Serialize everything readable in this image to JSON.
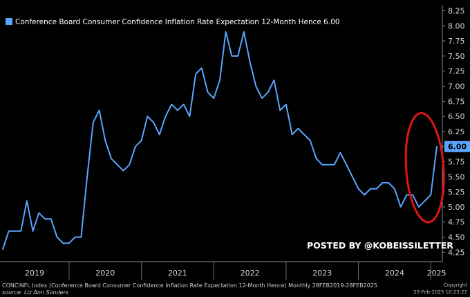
{
  "chart_data": {
    "type": "line",
    "legend": {
      "label": "Conference Board Consumer Confidence Inflation Rate Expectation 12-Month Hence",
      "last_value": "6.00",
      "color": "#5aa6ff",
      "placement": "top-left"
    },
    "ylim": [
      4.25,
      8.25
    ],
    "y_ticks": [
      "8.25",
      "8.00",
      "7.75",
      "7.50",
      "7.25",
      "7.00",
      "6.75",
      "6.50",
      "6.25",
      "6.00",
      "5.75",
      "5.50",
      "5.25",
      "5.00",
      "4.75",
      "4.50",
      "4.25"
    ],
    "x_ticks": [
      "2019",
      "2020",
      "2021",
      "2022",
      "2023",
      "2024",
      "2025"
    ],
    "xlim": [
      "2019-02",
      "2025-02"
    ],
    "x": [
      "2019-02",
      "2019-03",
      "2019-04",
      "2019-05",
      "2019-06",
      "2019-07",
      "2019-08",
      "2019-09",
      "2019-10",
      "2019-11",
      "2019-12",
      "2020-01",
      "2020-02",
      "2020-03",
      "2020-04",
      "2020-05",
      "2020-06",
      "2020-07",
      "2020-08",
      "2020-09",
      "2020-10",
      "2020-11",
      "2020-12",
      "2021-01",
      "2021-02",
      "2021-03",
      "2021-04",
      "2021-05",
      "2021-06",
      "2021-07",
      "2021-08",
      "2021-09",
      "2021-10",
      "2021-11",
      "2021-12",
      "2022-01",
      "2022-02",
      "2022-03",
      "2022-04",
      "2022-05",
      "2022-06",
      "2022-07",
      "2022-08",
      "2022-09",
      "2022-10",
      "2022-11",
      "2022-12",
      "2023-01",
      "2023-02",
      "2023-03",
      "2023-04",
      "2023-05",
      "2023-06",
      "2023-07",
      "2023-08",
      "2023-09",
      "2023-10",
      "2023-11",
      "2023-12",
      "2024-01",
      "2024-02",
      "2024-03",
      "2024-04",
      "2024-05",
      "2024-06",
      "2024-07",
      "2024-08",
      "2024-09",
      "2024-10",
      "2024-11",
      "2024-12",
      "2025-01",
      "2025-02"
    ],
    "y": [
      4.3,
      4.6,
      4.6,
      4.6,
      5.1,
      4.6,
      4.9,
      4.8,
      4.8,
      4.5,
      4.4,
      4.4,
      4.5,
      4.5,
      5.5,
      6.4,
      6.6,
      6.1,
      5.8,
      5.7,
      5.6,
      5.7,
      6.0,
      6.1,
      6.5,
      6.4,
      6.2,
      6.5,
      6.7,
      6.6,
      6.7,
      6.5,
      7.2,
      7.3,
      6.9,
      6.8,
      7.1,
      7.9,
      7.5,
      7.5,
      7.9,
      7.4,
      7.0,
      6.8,
      6.9,
      7.1,
      6.6,
      6.7,
      6.2,
      6.3,
      6.2,
      6.1,
      5.8,
      5.7,
      5.7,
      5.7,
      5.9,
      5.7,
      5.5,
      5.3,
      5.2,
      5.3,
      5.3,
      5.4,
      5.4,
      5.3,
      5.0,
      5.2,
      5.2,
      5.0,
      5.1,
      5.2,
      6.0
    ],
    "annotations": {
      "watermark": "POSTED BY @KOBEISSILETTER",
      "last_value_label": "6.00",
      "highlight": "red ellipse around 2025 spike"
    },
    "grid": false,
    "colors": {
      "line": "#5aa6ff",
      "highlight": "#e01515",
      "last_value_bg": "#5aa6ff"
    }
  },
  "footer": {
    "line1": "CONCINFL Index (Conference Board Consumer Confidence Inflation Rate Expectation 12-Month Hence)  Monthly 28FEB2019-28FEB2025",
    "line2": "source: Liz Ann Sonders",
    "copyright": "Copyright",
    "timestamp": "25-Feb-2025 10:23:27"
  }
}
